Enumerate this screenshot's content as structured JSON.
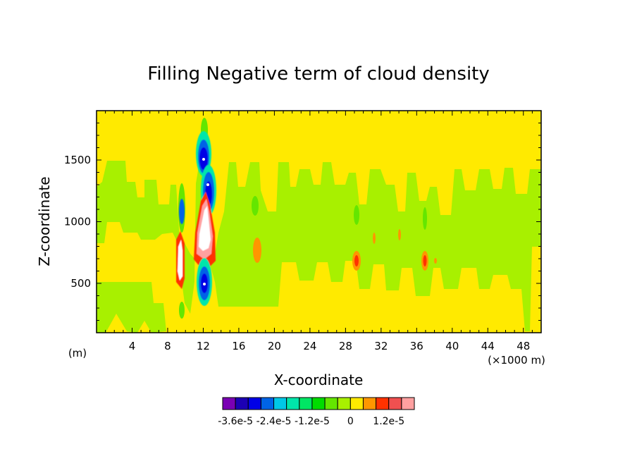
{
  "chart_data": {
    "type": "heatmap",
    "title": "Filling Negative term of cloud density",
    "xlabel": "X-coordinate",
    "ylabel": "Z-coordinate",
    "x_unit_label": "(m)",
    "x_scale_label": "(×1000 m)",
    "xlim": [
      0,
      50
    ],
    "ylim": [
      100,
      1900
    ],
    "xticks": [
      4,
      8,
      12,
      16,
      20,
      24,
      28,
      32,
      36,
      40,
      44,
      48
    ],
    "yticks": [
      500,
      1000,
      1500
    ],
    "background_level_color": "#ffea00",
    "features": [
      {
        "kind": "green-band",
        "x": [
          0.5,
          49.5
        ],
        "z": [
          100,
          1500
        ],
        "color": "#a8f000"
      },
      {
        "kind": "min",
        "x": 12.1,
        "z": 1500,
        "value": -3.6e-05
      },
      {
        "kind": "min",
        "x": 12.6,
        "z": 1300,
        "value": -3e-05
      },
      {
        "kind": "min",
        "x": 12.1,
        "z": 500,
        "value": -3.6e-05
      },
      {
        "kind": "max",
        "x": 12.5,
        "z": 850,
        "value": 1.6e-05
      },
      {
        "kind": "max",
        "x": 9.8,
        "z": 700,
        "value": 1.6e-05
      },
      {
        "kind": "pos",
        "x": 29.3,
        "z": 700,
        "value": 8e-06
      },
      {
        "kind": "pos",
        "x": 36.8,
        "z": 700,
        "value": 8e-06
      },
      {
        "kind": "pos",
        "x": 18.2,
        "z": 700,
        "value": 6e-06
      }
    ]
  },
  "colorbar": {
    "colors": [
      "#7a00b4",
      "#1c00b4",
      "#0000e6",
      "#0064e6",
      "#00c8e6",
      "#00e6aa",
      "#00e664",
      "#00dc00",
      "#64e600",
      "#a8f000",
      "#ffea00",
      "#ff9600",
      "#ff3200",
      "#f05050",
      "#ffa0a0"
    ],
    "labels": [
      "-3.6e-5",
      "-2.4e-5",
      "-1.2e-5",
      "0",
      "1.2e-5"
    ]
  }
}
